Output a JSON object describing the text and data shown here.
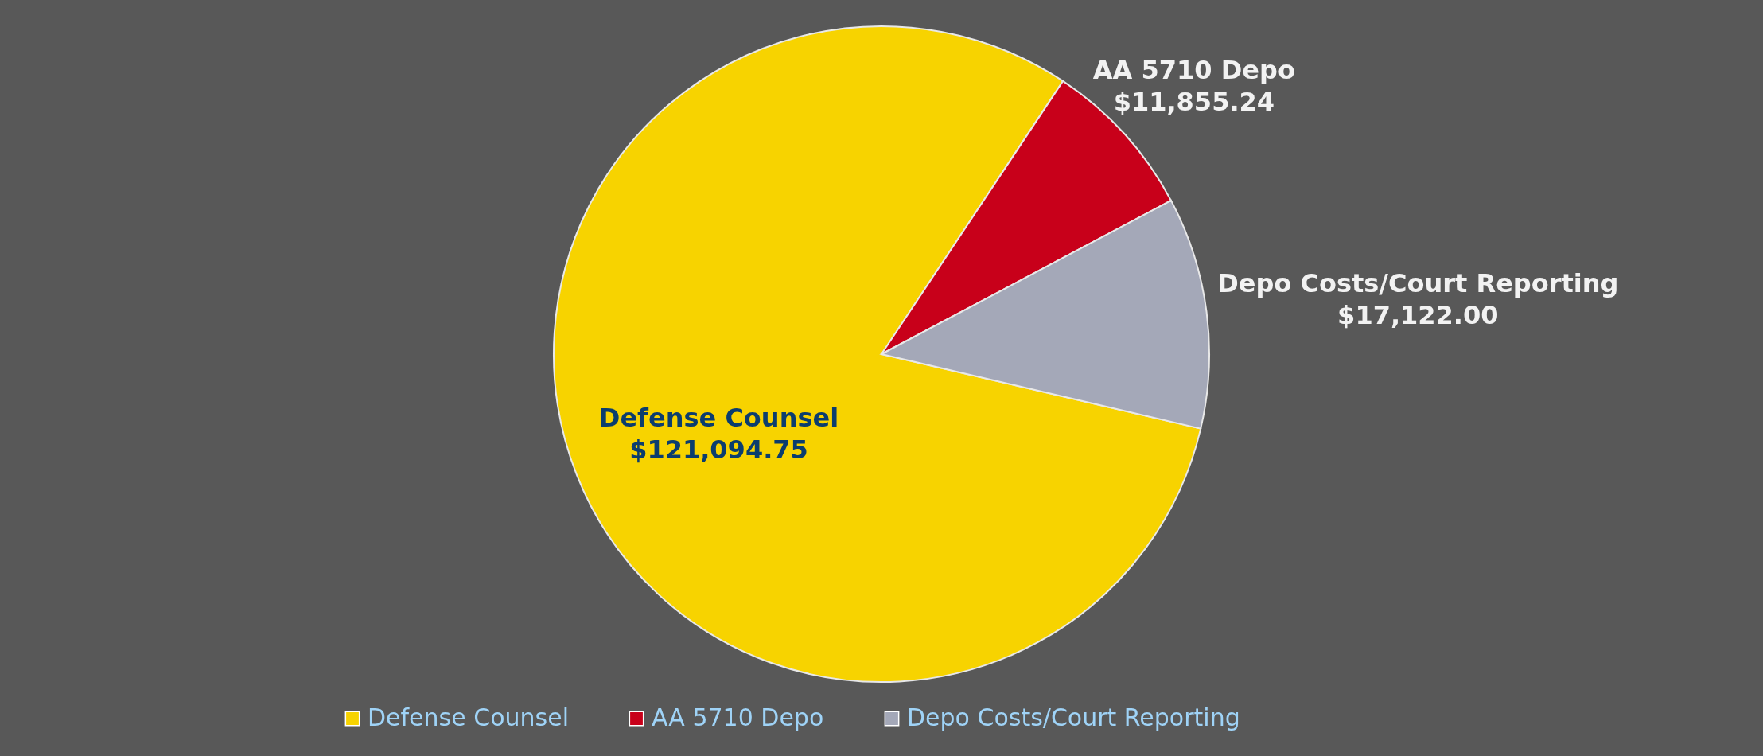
{
  "chart_data": {
    "type": "pie",
    "categories": [
      "Defense Counsel",
      "AA 5710 Depo",
      "Depo Costs/Court Reporting"
    ],
    "values": [
      121094.75,
      11855.24,
      17122.0
    ],
    "colors": [
      "#f7d300",
      "#c8001a",
      "#a4a8b8"
    ],
    "value_labels": [
      "$121,094.75",
      "$11,855.24",
      "$17,122.00"
    ],
    "legend": "bottom"
  }
}
